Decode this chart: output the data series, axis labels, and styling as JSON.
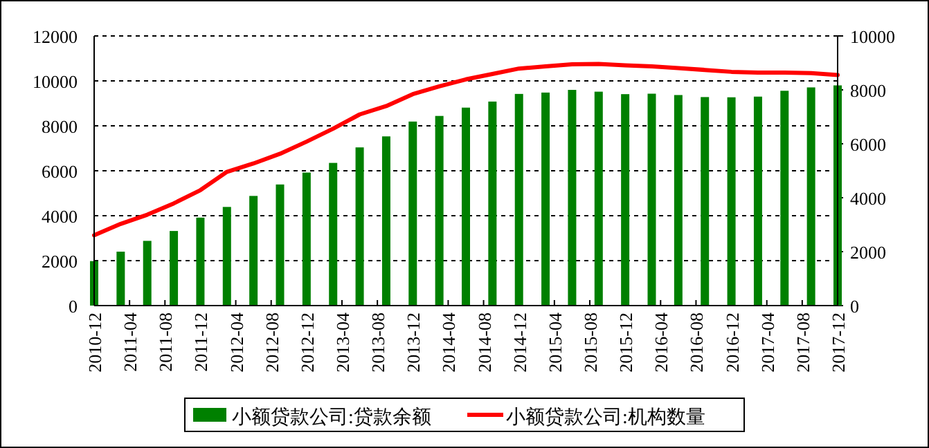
{
  "chart_data": {
    "type": "bar",
    "x": [
      "2010-12",
      "2011-03",
      "2011-06",
      "2011-09",
      "2011-12",
      "2012-03",
      "2012-06",
      "2012-09",
      "2012-12",
      "2013-03",
      "2013-06",
      "2013-09",
      "2013-12",
      "2014-03",
      "2014-06",
      "2014-09",
      "2014-12",
      "2015-03",
      "2015-06",
      "2015-09",
      "2015-12",
      "2016-03",
      "2016-06",
      "2016-09",
      "2016-12",
      "2017-03",
      "2017-06",
      "2017-09",
      "2017-12"
    ],
    "series": [
      {
        "name": "小额贷款公司:贷款余额",
        "color": "#008000",
        "values": [
          1980,
          2400,
          2880,
          3320,
          3915,
          4390,
          4880,
          5390,
          5920,
          6350,
          7040,
          7530,
          8190,
          8440,
          8810,
          9080,
          9420,
          9480,
          9600,
          9520,
          9410,
          9430,
          9370,
          9280,
          9270,
          9300,
          9560,
          9710,
          9800
        ]
      },
      {
        "name": "小额贷款公司:机构数量",
        "type": "line",
        "axis": "y2",
        "color": "#ff0000",
        "values": [
          2610,
          3030,
          3370,
          3790,
          4280,
          4960,
          5270,
          5630,
          6080,
          6560,
          7090,
          7400,
          7840,
          8130,
          8390,
          8590,
          8790,
          8870,
          8950,
          8960,
          8910,
          8870,
          8810,
          8740,
          8670,
          8640,
          8640,
          8620,
          8550
        ]
      }
    ],
    "xlim": [
      "2010-12",
      "2017-12"
    ],
    "xticks": [
      "2010-12",
      "2011-04",
      "2011-08",
      "2011-12",
      "2012-04",
      "2012-08",
      "2012-12",
      "2013-04",
      "2013-08",
      "2013-12",
      "2014-04",
      "2014-08",
      "2014-12",
      "2015-04",
      "2015-08",
      "2015-12",
      "2016-04",
      "2016-08",
      "2016-12",
      "2017-04",
      "2017-08",
      "2017-12"
    ],
    "ylim": [
      0,
      12000
    ],
    "yticks": [
      0,
      2000,
      4000,
      6000,
      8000,
      10000,
      12000
    ],
    "y2lim": [
      0,
      10000
    ],
    "y2ticks": [
      0,
      2000,
      4000,
      6000,
      8000,
      10000
    ],
    "grid": "y",
    "legend": "bottom"
  }
}
